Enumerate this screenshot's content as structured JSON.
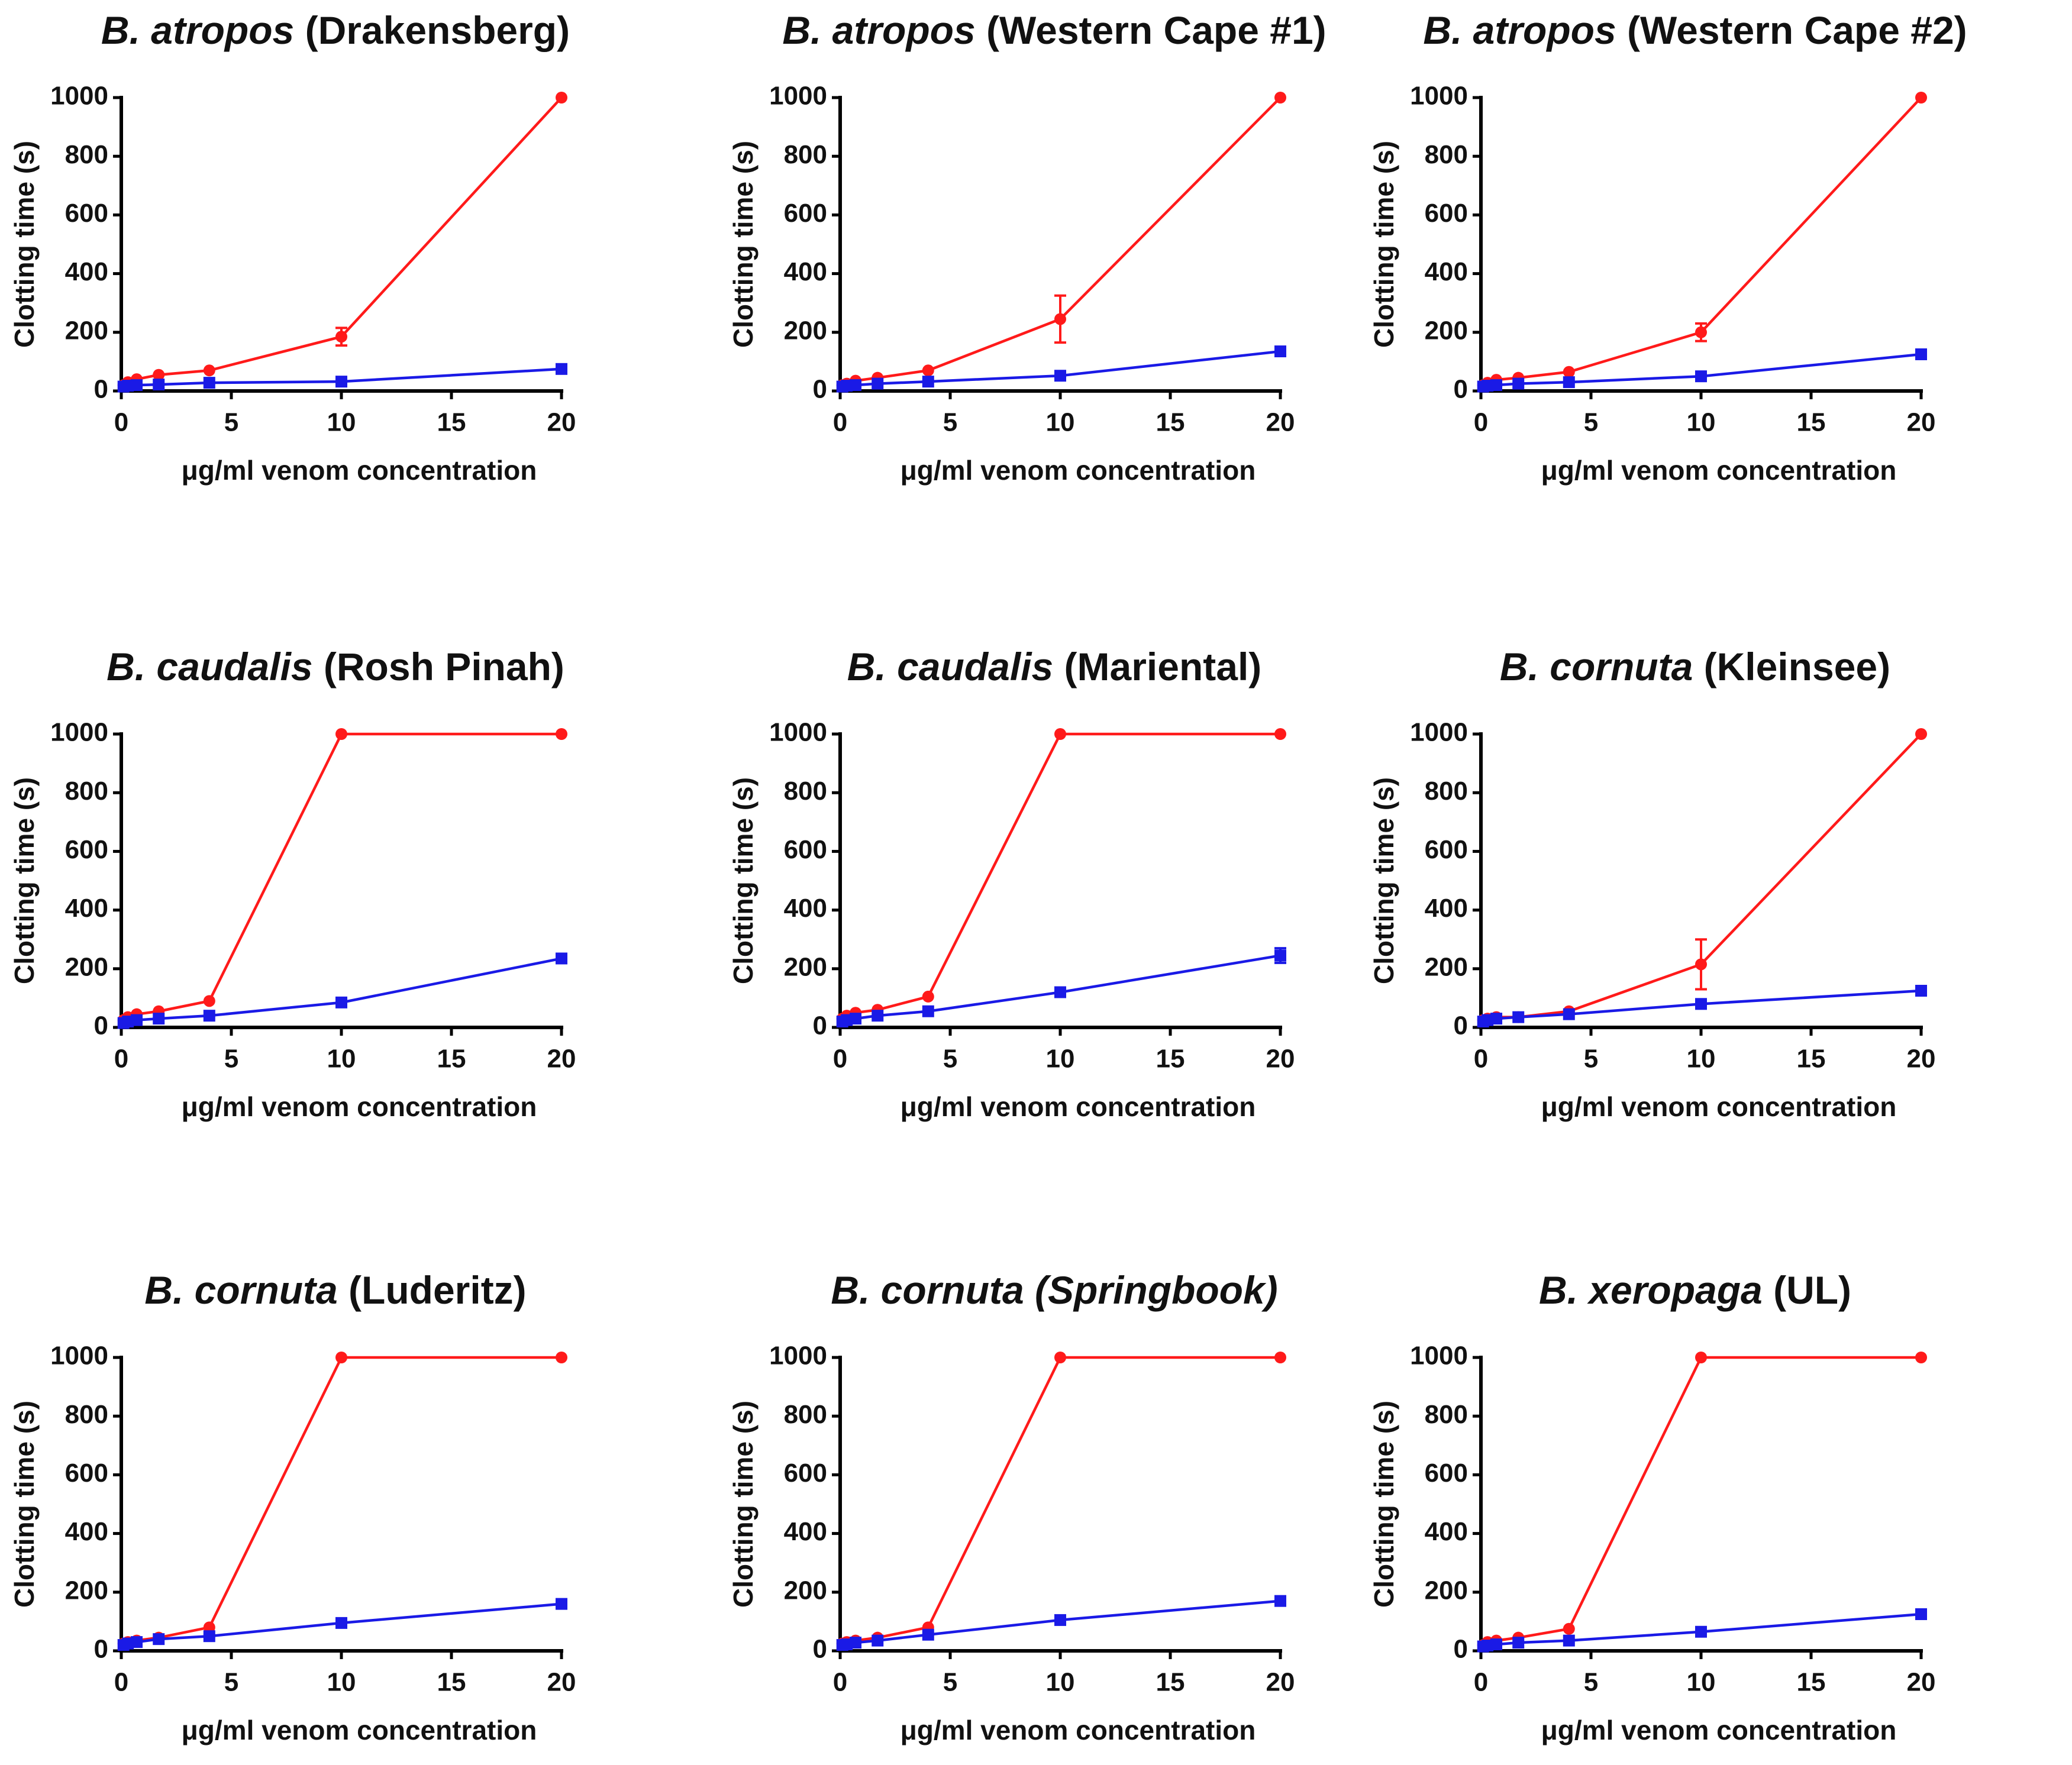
{
  "chart_data": [
    {
      "type": "line",
      "title": {
        "species": "B. atropos",
        "locality": "(Drakensberg)",
        "locality_italic": false
      },
      "xlabel": "μg/ml venom concentration",
      "ylabel": "Clotting time (s)",
      "x": [
        0.1,
        0.3,
        0.7,
        1.7,
        4,
        10,
        20
      ],
      "xlim": [
        0,
        20
      ],
      "xticks": [
        0,
        5,
        10,
        15,
        20
      ],
      "ylim": [
        0,
        1000
      ],
      "yticks": [
        0,
        200,
        400,
        600,
        800,
        1000
      ],
      "series": [
        {
          "color": "#ff1a1a",
          "marker": "circle",
          "values": [
            20,
            30,
            40,
            55,
            70,
            185,
            1000
          ],
          "errors": [
            null,
            null,
            null,
            null,
            null,
            30,
            null
          ]
        },
        {
          "color": "#1a1ae6",
          "marker": "square",
          "values": [
            15,
            18,
            20,
            22,
            28,
            32,
            75
          ]
        }
      ]
    },
    {
      "type": "line",
      "title": {
        "species": "B. atropos",
        "locality": "(Western Cape #1)",
        "locality_italic": false
      },
      "xlabel": "μg/ml venom concentration",
      "ylabel": "Clotting time (s)",
      "x": [
        0.1,
        0.3,
        0.7,
        1.7,
        4,
        10,
        20
      ],
      "xlim": [
        0,
        20
      ],
      "xticks": [
        0,
        5,
        10,
        15,
        20
      ],
      "ylim": [
        0,
        1000
      ],
      "yticks": [
        0,
        200,
        400,
        600,
        800,
        1000
      ],
      "series": [
        {
          "color": "#ff1a1a",
          "marker": "circle",
          "values": [
            20,
            25,
            35,
            45,
            70,
            245,
            1000
          ],
          "errors": [
            null,
            null,
            null,
            null,
            null,
            80,
            null
          ]
        },
        {
          "color": "#1a1ae6",
          "marker": "square",
          "values": [
            15,
            18,
            20,
            25,
            32,
            52,
            135
          ]
        }
      ]
    },
    {
      "type": "line",
      "title": {
        "species": "B. atropos",
        "locality": "(Western Cape #2)",
        "locality_italic": false
      },
      "xlabel": "μg/ml venom concentration",
      "ylabel": "Clotting time (s)",
      "x": [
        0.1,
        0.3,
        0.7,
        1.7,
        4,
        10,
        20
      ],
      "xlim": [
        0,
        20
      ],
      "xticks": [
        0,
        5,
        10,
        15,
        20
      ],
      "ylim": [
        0,
        1000
      ],
      "yticks": [
        0,
        200,
        400,
        600,
        800,
        1000
      ],
      "series": [
        {
          "color": "#ff1a1a",
          "marker": "circle",
          "values": [
            20,
            28,
            38,
            45,
            65,
            200,
            1000
          ],
          "errors": [
            null,
            null,
            null,
            null,
            null,
            30,
            null
          ]
        },
        {
          "color": "#1a1ae6",
          "marker": "square",
          "values": [
            15,
            18,
            20,
            25,
            30,
            50,
            125
          ]
        }
      ]
    },
    {
      "type": "line",
      "title": {
        "species": "B. caudalis",
        "locality": "(Rosh Pinah)",
        "locality_italic": false
      },
      "xlabel": "μg/ml venom concentration",
      "ylabel": "Clotting time (s)",
      "x": [
        0.1,
        0.3,
        0.7,
        1.7,
        4,
        10,
        20
      ],
      "xlim": [
        0,
        20
      ],
      "xticks": [
        0,
        5,
        10,
        15,
        20
      ],
      "ylim": [
        0,
        1000
      ],
      "yticks": [
        0,
        200,
        400,
        600,
        800,
        1000
      ],
      "series": [
        {
          "color": "#ff1a1a",
          "marker": "circle",
          "values": [
            25,
            35,
            45,
            55,
            90,
            1000,
            1000
          ]
        },
        {
          "color": "#1a1ae6",
          "marker": "square",
          "values": [
            15,
            20,
            25,
            30,
            40,
            85,
            235
          ]
        }
      ]
    },
    {
      "type": "line",
      "title": {
        "species": "B. caudalis",
        "locality": "(Mariental)",
        "locality_italic": false
      },
      "xlabel": "μg/ml venom concentration",
      "ylabel": "Clotting time (s)",
      "x": [
        0.1,
        0.3,
        0.7,
        1.7,
        4,
        10,
        20
      ],
      "xlim": [
        0,
        20
      ],
      "xticks": [
        0,
        5,
        10,
        15,
        20
      ],
      "ylim": [
        0,
        1000
      ],
      "yticks": [
        0,
        200,
        400,
        600,
        800,
        1000
      ],
      "series": [
        {
          "color": "#ff1a1a",
          "marker": "circle",
          "values": [
            30,
            40,
            50,
            60,
            105,
            1000,
            1000
          ]
        },
        {
          "color": "#1a1ae6",
          "marker": "square",
          "values": [
            20,
            25,
            30,
            40,
            55,
            120,
            245
          ],
          "errors": [
            null,
            null,
            null,
            null,
            null,
            null,
            25
          ]
        }
      ]
    },
    {
      "type": "line",
      "title": {
        "species": "B. cornuta",
        "locality": "(Kleinsee)",
        "locality_italic": false
      },
      "xlabel": "μg/ml venom concentration",
      "ylabel": "Clotting time (s)",
      "x": [
        0.1,
        0.3,
        0.7,
        1.7,
        4,
        10,
        20
      ],
      "xlim": [
        0,
        20
      ],
      "xticks": [
        0,
        5,
        10,
        15,
        20
      ],
      "ylim": [
        0,
        1000
      ],
      "yticks": [
        0,
        200,
        400,
        600,
        800,
        1000
      ],
      "series": [
        {
          "color": "#ff1a1a",
          "marker": "circle",
          "values": [
            25,
            30,
            35,
            35,
            55,
            215,
            1000
          ],
          "errors": [
            null,
            null,
            null,
            null,
            null,
            85,
            null
          ]
        },
        {
          "color": "#1a1ae6",
          "marker": "square",
          "values": [
            20,
            25,
            30,
            35,
            45,
            80,
            125
          ]
        }
      ]
    },
    {
      "type": "line",
      "title": {
        "species": "B. cornuta",
        "locality": "(Luderitz)",
        "locality_italic": false
      },
      "xlabel": "μg/ml venom concentration",
      "ylabel": "Clotting time (s)",
      "x": [
        0.1,
        0.3,
        0.7,
        1.7,
        4,
        10,
        20
      ],
      "xlim": [
        0,
        20
      ],
      "xticks": [
        0,
        5,
        10,
        15,
        20
      ],
      "ylim": [
        0,
        1000
      ],
      "yticks": [
        0,
        200,
        400,
        600,
        800,
        1000
      ],
      "series": [
        {
          "color": "#ff1a1a",
          "marker": "circle",
          "values": [
            25,
            30,
            35,
            45,
            80,
            1000,
            1000
          ]
        },
        {
          "color": "#1a1ae6",
          "marker": "square",
          "values": [
            20,
            25,
            30,
            40,
            50,
            95,
            160
          ]
        }
      ]
    },
    {
      "type": "line",
      "title": {
        "species": "B. cornuta",
        "locality": "(Springbook)",
        "locality_italic": true
      },
      "xlabel": "μg/ml venom concentration",
      "ylabel": "Clotting time (s)",
      "x": [
        0.1,
        0.3,
        0.7,
        1.7,
        4,
        10,
        20
      ],
      "xlim": [
        0,
        20
      ],
      "xticks": [
        0,
        5,
        10,
        15,
        20
      ],
      "ylim": [
        0,
        1000
      ],
      "yticks": [
        0,
        200,
        400,
        600,
        800,
        1000
      ],
      "series": [
        {
          "color": "#ff1a1a",
          "marker": "circle",
          "values": [
            25,
            30,
            35,
            45,
            80,
            1000,
            1000
          ]
        },
        {
          "color": "#1a1ae6",
          "marker": "square",
          "values": [
            20,
            22,
            28,
            35,
            55,
            105,
            170
          ]
        }
      ]
    },
    {
      "type": "line",
      "title": {
        "species": "B. xeropaga",
        "locality": "(UL)",
        "locality_italic": false
      },
      "xlabel": "μg/ml venom concentration",
      "ylabel": "Clotting time (s)",
      "x": [
        0.1,
        0.3,
        0.7,
        1.7,
        4,
        10,
        20
      ],
      "xlim": [
        0,
        20
      ],
      "xticks": [
        0,
        5,
        10,
        15,
        20
      ],
      "ylim": [
        0,
        1000
      ],
      "yticks": [
        0,
        200,
        400,
        600,
        800,
        1000
      ],
      "series": [
        {
          "color": "#ff1a1a",
          "marker": "circle",
          "values": [
            20,
            30,
            35,
            45,
            75,
            1000,
            1000
          ]
        },
        {
          "color": "#1a1ae6",
          "marker": "square",
          "values": [
            15,
            18,
            22,
            28,
            35,
            65,
            125
          ]
        }
      ]
    }
  ]
}
